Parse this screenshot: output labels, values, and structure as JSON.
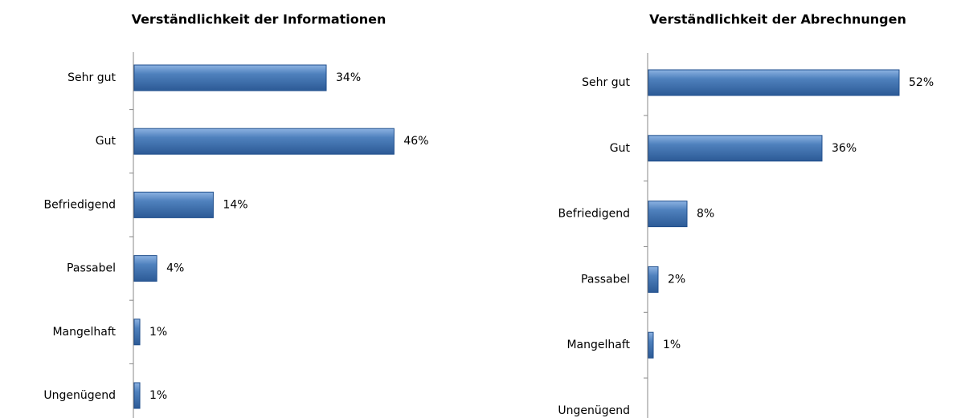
{
  "chart_data": [
    {
      "type": "bar",
      "orientation": "horizontal",
      "title": "Verständlichkeit der Informationen",
      "categories": [
        "Sehr gut",
        "Gut",
        "Befriedigend",
        "Passabel",
        "Mangelhaft",
        "Ungenügend"
      ],
      "values": [
        34,
        46,
        14,
        4,
        1,
        1
      ],
      "value_labels": [
        "34%",
        "46%",
        "14%",
        "4%",
        "1%",
        "1%"
      ],
      "color": "#4f81bd"
    },
    {
      "type": "bar",
      "orientation": "horizontal",
      "title": "Verständlichkeit der Abrechnungen",
      "categories": [
        "Sehr gut",
        "Gut",
        "Befriedigend",
        "Passabel",
        "Mangelhaft",
        "Ungenügend"
      ],
      "values": [
        52,
        36,
        8,
        2,
        1,
        0
      ],
      "value_labels": [
        "52%",
        "36%",
        "8%",
        "2%",
        "1%",
        null
      ],
      "color": "#4f81bd"
    }
  ]
}
